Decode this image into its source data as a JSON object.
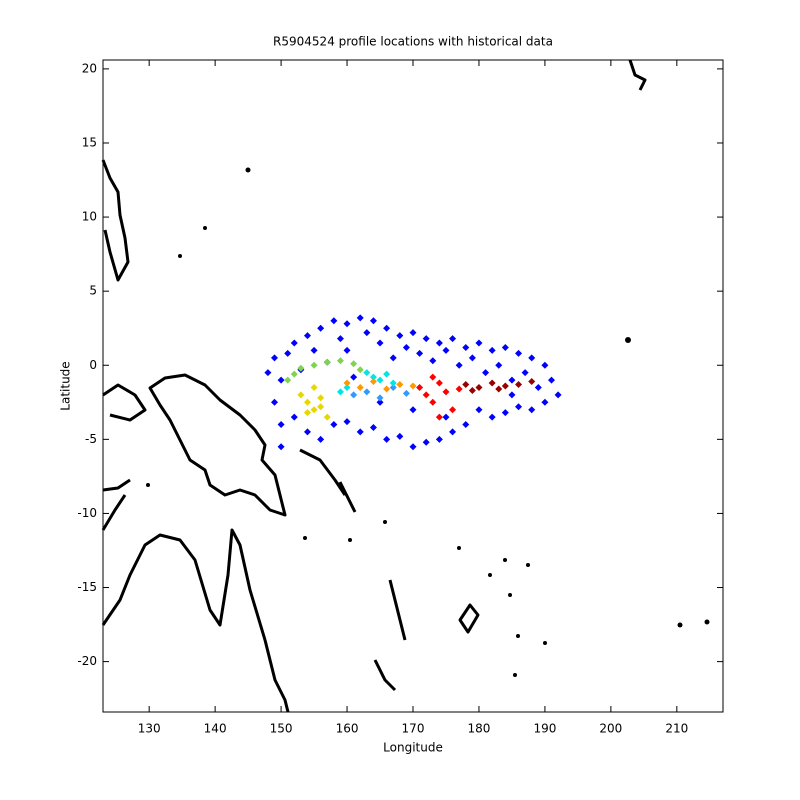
{
  "chart_data": {
    "type": "scatter",
    "title": "R5904524 profile locations with historical data",
    "x_label": "Longitude",
    "y_label": "Latitude",
    "xlim": [
      123,
      217
    ],
    "ylim": [
      -23.4,
      20.6
    ],
    "xticks": [
      130,
      140,
      150,
      160,
      170,
      180,
      190,
      200,
      210
    ],
    "yticks": [
      -20,
      -15,
      -10,
      -5,
      0,
      5,
      10,
      15,
      20
    ],
    "series": [
      {
        "color": "#0000ff",
        "x": [
          148,
          149,
          150,
          151,
          152,
          153,
          154,
          155,
          156,
          157,
          158,
          159,
          160,
          161,
          162,
          163,
          164,
          165,
          166,
          167,
          168,
          169,
          170,
          171,
          172,
          173,
          174,
          175,
          176,
          177,
          178,
          179,
          180,
          181,
          182,
          183,
          184,
          185,
          186,
          187,
          188,
          189,
          190,
          191,
          192,
          190,
          188,
          186,
          184,
          182,
          180,
          178,
          176,
          174,
          172,
          170,
          168,
          166,
          164,
          162,
          160,
          158,
          156,
          154,
          152,
          150,
          149,
          150,
          165,
          170,
          185,
          160,
          175
        ],
        "y": [
          -0.5,
          0.5,
          -1,
          0.8,
          1.5,
          -0.3,
          2,
          1,
          2.5,
          0.2,
          3,
          1.8,
          2.8,
          -0.8,
          3.2,
          2.2,
          3,
          1.5,
          2.5,
          0.5,
          2,
          1.2,
          2.2,
          0.8,
          1.8,
          0.3,
          1.5,
          1,
          1.8,
          0,
          1.2,
          0.5,
          1.5,
          -0.5,
          1,
          0,
          1.2,
          -1,
          0.8,
          -0.5,
          0.5,
          -1.5,
          0,
          -1,
          -2,
          -2.5,
          -3,
          -2.8,
          -3.2,
          -3.5,
          -3,
          -4,
          -4.5,
          -5,
          -5.2,
          -5.5,
          -4.8,
          -5,
          -4.2,
          -4.5,
          -3.8,
          -4,
          -5,
          -4.5,
          -3.5,
          -4,
          -2.5,
          -5.5,
          -2.5,
          -3,
          -2,
          1,
          -3.5
        ]
      },
      {
        "color": "#3399ff",
        "x": [
          161,
          163,
          165,
          167,
          169
        ],
        "y": [
          -2,
          -1.8,
          -2.2,
          -1.5,
          -1.9
        ]
      },
      {
        "color": "#00e5e5",
        "x": [
          163,
          164,
          165,
          166,
          167,
          159,
          160
        ],
        "y": [
          -0.5,
          -0.8,
          -1,
          -0.6,
          -1.2,
          -1.8,
          -1.5
        ]
      },
      {
        "color": "#7fd34f",
        "x": [
          151,
          152,
          153,
          155,
          157,
          159,
          161,
          162
        ],
        "y": [
          -1,
          -0.6,
          -0.2,
          0,
          0.2,
          0.3,
          0.1,
          -0.3
        ]
      },
      {
        "color": "#e6d700",
        "x": [
          153,
          154,
          155,
          156,
          157,
          155,
          154,
          156
        ],
        "y": [
          -2,
          -2.5,
          -3,
          -2.2,
          -3.5,
          -1.5,
          -3.2,
          -2.8
        ]
      },
      {
        "color": "#ff9900",
        "x": [
          160,
          162,
          164,
          166,
          168,
          170
        ],
        "y": [
          -1.2,
          -1.5,
          -1.1,
          -1.6,
          -1.3,
          -1.4
        ]
      },
      {
        "color": "#ff0000",
        "x": [
          171,
          172,
          173,
          174,
          175,
          176,
          174,
          173,
          177
        ],
        "y": [
          -1.5,
          -2,
          -2.5,
          -1.2,
          -1.8,
          -3,
          -3.5,
          -0.8,
          -1.6
        ]
      },
      {
        "color": "#990000",
        "x": [
          178,
          180,
          182,
          184,
          186,
          188,
          179,
          183
        ],
        "y": [
          -1.3,
          -1.5,
          -1.2,
          -1.4,
          -1.3,
          -1.1,
          -1.7,
          -1.6
        ]
      }
    ]
  }
}
